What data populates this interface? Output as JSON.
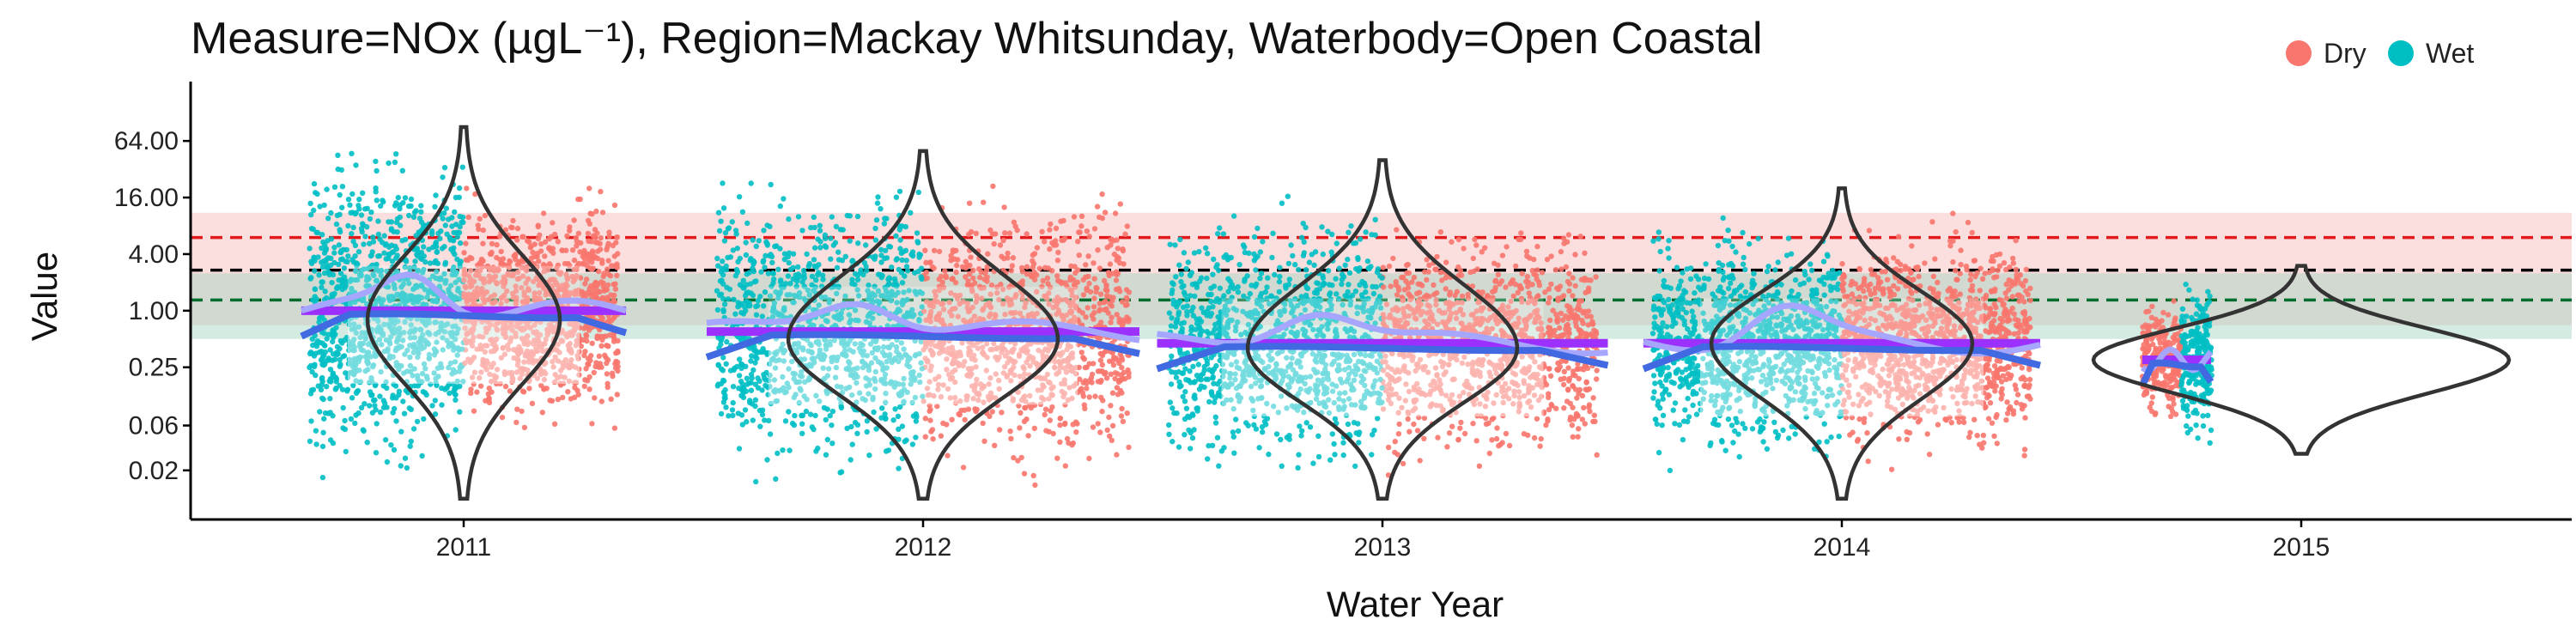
{
  "chart_data": {
    "type": "scatter",
    "title": "Measure=NOx (µgL⁻¹), Region=Mackay Whitsunday, Waterbody=Open Coastal",
    "xlabel": "Water Year",
    "ylabel": "Value",
    "y_scale": "log",
    "ylim": [
      0.006,
      200
    ],
    "x_categories": [
      "2011",
      "2012",
      "2013",
      "2014",
      "2015"
    ],
    "y_ticks": [
      {
        "value": 64,
        "label": "64.00"
      },
      {
        "value": 16,
        "label": "16.00"
      },
      {
        "value": 4,
        "label": "4.00"
      },
      {
        "value": 1,
        "label": "1.00"
      },
      {
        "value": 0.25,
        "label": "0.25"
      },
      {
        "value": 0.06,
        "label": "0.06"
      },
      {
        "value": 0.02,
        "label": "0.02"
      }
    ],
    "legend": {
      "position": "top-right",
      "entries": [
        {
          "name": "Dry",
          "color": "#F8766D"
        },
        {
          "name": "Wet",
          "color": "#00BFC4"
        }
      ]
    },
    "guideline_bands": [
      {
        "name": "upper",
        "lower": 0.7,
        "upper": 11,
        "line": 6,
        "fill": "#f7b8b8",
        "line_color": "#e31a1c"
      },
      {
        "name": "mid",
        "line": 2.7,
        "line_color": "#000000"
      },
      {
        "name": "lower",
        "lower": 0.5,
        "upper": 2.5,
        "line": 1.3,
        "fill": "#9fd3bf",
        "line_color": "#006d2c"
      }
    ],
    "series": [
      {
        "year": "2011",
        "median": 1.0,
        "wet_range": [
          0.007,
          90
        ],
        "dry_range": [
          0.02,
          20
        ],
        "violin_range": [
          0.01,
          90
        ],
        "violin_peak": 0.8
      },
      {
        "year": "2012",
        "median": 0.6,
        "wet_range": [
          0.008,
          55
        ],
        "dry_range": [
          0.01,
          40
        ],
        "violin_range": [
          0.01,
          50
        ],
        "violin_peak": 0.5
      },
      {
        "year": "2013",
        "median": 0.45,
        "wet_range": [
          0.007,
          25
        ],
        "dry_range": [
          0.015,
          20
        ],
        "violin_range": [
          0.01,
          40
        ],
        "violin_peak": 0.4
      },
      {
        "year": "2014",
        "median": 0.45,
        "wet_range": [
          0.015,
          20
        ],
        "dry_range": [
          0.015,
          15
        ],
        "violin_range": [
          0.01,
          20
        ],
        "violin_peak": 0.45
      },
      {
        "year": "2015",
        "median": 0.3,
        "wet_range": [
          0.02,
          3
        ],
        "dry_range": [
          0.05,
          1.5
        ],
        "violin_range": [
          0.03,
          3
        ],
        "violin_peak": 0.3
      }
    ],
    "colors": {
      "dry": "#F8766D",
      "wet": "#00BFC4",
      "trend": "#4169e1",
      "trend_light": "#a6a6ff",
      "median": "#9b30ff"
    }
  }
}
